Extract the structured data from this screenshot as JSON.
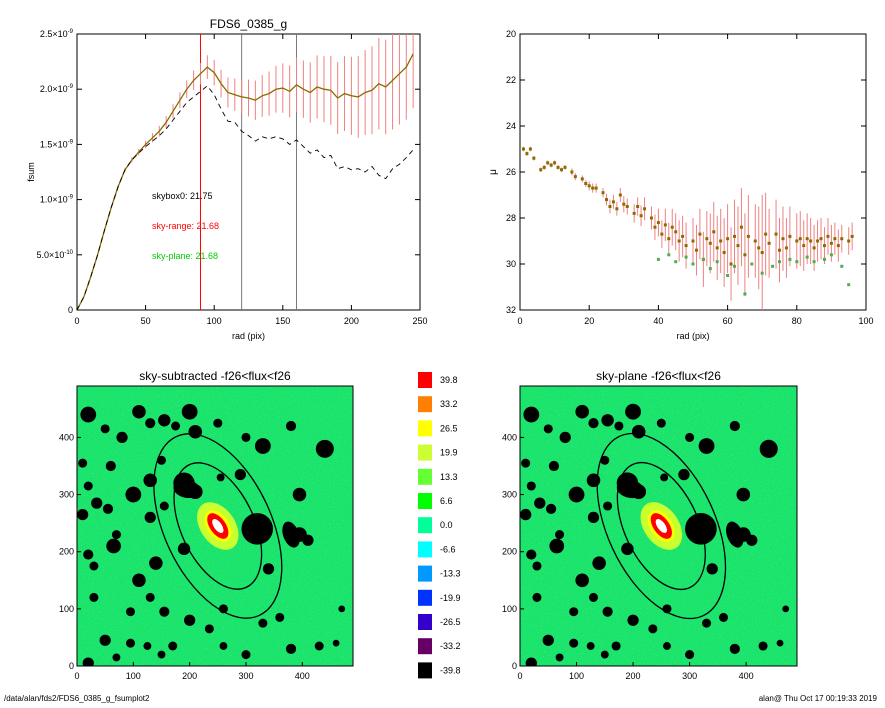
{
  "footer": {
    "path": "/data/alan/fds2/FDS6_0385_g_fsumplot2",
    "stamp": "alan@  Thu Oct 17 00:19:33 2019"
  },
  "chart_data": [
    {
      "id": "fsum",
      "type": "line",
      "title": "FDS6_0385_g",
      "xlabel": "rad (pix)",
      "ylabel": "fsum",
      "xlim": [
        0,
        250
      ],
      "ylim": [
        0,
        2.5e-09
      ],
      "x_ticks": [
        0,
        50,
        100,
        150,
        200,
        250
      ],
      "x_tick_labels": [
        "0",
        "50",
        "100",
        "150",
        "200",
        "250"
      ],
      "y_ticks": [
        0,
        5e-10,
        1e-09,
        1.5e-09,
        2e-09,
        2.5e-09
      ],
      "y_tick_labels": [
        {
          "mant": "0",
          "exp": ""
        },
        {
          "mant": "5.0×10",
          "exp": "-10"
        },
        {
          "mant": "1.0×10",
          "exp": "-9"
        },
        {
          "mant": "1.5×10",
          "exp": "-9"
        },
        {
          "mant": "2.0×10",
          "exp": "-9"
        },
        {
          "mant": "2.5×10",
          "exp": "-9"
        }
      ],
      "vlines": [
        {
          "x": 90,
          "color": "#ff0000"
        },
        {
          "x": 120,
          "color": "#777777"
        },
        {
          "x": 160,
          "color": "#777777"
        }
      ],
      "annotations": [
        {
          "text": "skybox0: 21.75",
          "color": "#000000"
        },
        {
          "text": "sky-range: 21.68",
          "color": "#ff0000"
        },
        {
          "text": "sky-plane: 21.68",
          "color": "#00cc00"
        }
      ],
      "series": [
        {
          "style": "solid",
          "color": "#8b6b00",
          "x": [
            0,
            5,
            10,
            15,
            20,
            25,
            30,
            35,
            40,
            45,
            50,
            55,
            60,
            65,
            70,
            75,
            80,
            85,
            90,
            95,
            100,
            105,
            110,
            115,
            120,
            125,
            130,
            135,
            140,
            145,
            150,
            155,
            160,
            165,
            170,
            175,
            180,
            185,
            190,
            195,
            200,
            205,
            210,
            215,
            220,
            225,
            230,
            235,
            240,
            245
          ],
          "y": [
            0,
            1.2e-10,
            3e-10,
            5e-10,
            7.2e-10,
            9.3e-10,
            1.12e-09,
            1.27e-09,
            1.36e-09,
            1.43e-09,
            1.5e-09,
            1.56e-09,
            1.62e-09,
            1.7e-09,
            1.8e-09,
            1.9e-09,
            2e-09,
            2.08e-09,
            2.14e-09,
            2.2e-09,
            2.15e-09,
            2.05e-09,
            1.97e-09,
            1.95e-09,
            1.93e-09,
            1.92e-09,
            1.9e-09,
            1.94e-09,
            1.96e-09,
            2e-09,
            2.01e-09,
            1.98e-09,
            2.04e-09,
            2e-09,
            1.97e-09,
            2.02e-09,
            2e-09,
            1.99e-09,
            1.92e-09,
            1.96e-09,
            1.94e-09,
            1.93e-09,
            1.97e-09,
            1.99e-09,
            2.05e-09,
            2.02e-09,
            2.08e-09,
            2.14e-09,
            2.2e-09,
            2.32e-09
          ],
          "err": [
            0,
            1e-12,
            2e-12,
            4e-12,
            6e-12,
            9e-12,
            1.3e-11,
            1.8e-11,
            2.3e-11,
            2.9e-11,
            3.5e-11,
            4.2e-11,
            4.9e-11,
            5.6e-11,
            6.4e-11,
            7.2e-11,
            8e-11,
            8.9e-11,
            9.8e-11,
            1.07e-10,
            1.16e-10,
            1.26e-10,
            1.36e-10,
            1.46e-10,
            1.56e-10,
            1.67e-10,
            1.78e-10,
            1.89e-10,
            2e-10,
            2.12e-10,
            2.24e-10,
            2.36e-10,
            2.48e-10,
            2.6e-10,
            2.73e-10,
            2.86e-10,
            2.99e-10,
            3.13e-10,
            3.26e-10,
            3.4e-10,
            3.54e-10,
            3.69e-10,
            3.84e-10,
            3.98e-10,
            4.14e-10,
            4.29e-10,
            4.45e-10,
            4.6e-10,
            4.76e-10,
            4.93e-10
          ],
          "errcolor": "#f08080"
        },
        {
          "style": "dashed",
          "color": "#000000",
          "x": [
            0,
            5,
            10,
            15,
            20,
            25,
            30,
            35,
            40,
            45,
            50,
            55,
            60,
            65,
            70,
            75,
            80,
            85,
            90,
            95,
            100,
            105,
            110,
            115,
            120,
            125,
            130,
            135,
            140,
            145,
            150,
            155,
            160,
            165,
            170,
            175,
            180,
            185,
            190,
            195,
            200,
            205,
            210,
            215,
            220,
            225,
            230,
            235,
            240,
            245
          ],
          "y": [
            0,
            1.2e-10,
            3e-10,
            5e-10,
            7.2e-10,
            9.3e-10,
            1.12e-09,
            1.27e-09,
            1.36e-09,
            1.42e-09,
            1.48e-09,
            1.53e-09,
            1.58e-09,
            1.64e-09,
            1.72e-09,
            1.8e-09,
            1.88e-09,
            1.93e-09,
            1.98e-09,
            2.03e-09,
            1.95e-09,
            1.82e-09,
            1.71e-09,
            1.7e-09,
            1.62e-09,
            1.58e-09,
            1.53e-09,
            1.57e-09,
            1.55e-09,
            1.57e-09,
            1.55e-09,
            1.5e-09,
            1.54e-09,
            1.48e-09,
            1.42e-09,
            1.45e-09,
            1.38e-09,
            1.4e-09,
            1.28e-09,
            1.3e-09,
            1.27e-09,
            1.28e-09,
            1.25e-09,
            1.3e-09,
            1.22e-09,
            1.19e-09,
            1.28e-09,
            1.32e-09,
            1.38e-09,
            1.45e-09
          ]
        }
      ]
    },
    {
      "id": "mu",
      "type": "scatter",
      "title": "",
      "xlabel": "rad (pix)",
      "ylabel": "μ",
      "xlim": [
        0,
        100
      ],
      "ylim": [
        20,
        32
      ],
      "y_inverted": true,
      "x_ticks": [
        0,
        20,
        40,
        60,
        80,
        100
      ],
      "y_ticks": [
        20,
        22,
        24,
        26,
        28,
        30,
        32
      ],
      "series": [
        {
          "color": "#8b6b00",
          "x": [
            1,
            2,
            3,
            4,
            6,
            7,
            8,
            9,
            10,
            11,
            12,
            13,
            15,
            16,
            18,
            19,
            20,
            21,
            22,
            24,
            25,
            26,
            27,
            28,
            29,
            30,
            31,
            33,
            34,
            35,
            36,
            38,
            39,
            40,
            41,
            42,
            43,
            44,
            45,
            46,
            47,
            48,
            50,
            51,
            52,
            53,
            54,
            55,
            56,
            57,
            58,
            59,
            60,
            61,
            62,
            63,
            64,
            65,
            66,
            68,
            69,
            70,
            71,
            72,
            74,
            75,
            76,
            77,
            78,
            80,
            81,
            82,
            83,
            84,
            85,
            86,
            87,
            88,
            89,
            90,
            91,
            92,
            93,
            95,
            96
          ],
          "y": [
            25.0,
            25.2,
            25.0,
            25.4,
            25.9,
            25.8,
            25.6,
            25.7,
            25.6,
            25.8,
            25.9,
            25.8,
            26.0,
            26.2,
            26.3,
            26.5,
            26.6,
            26.7,
            26.7,
            26.9,
            27.2,
            27.5,
            27.3,
            27.6,
            27.0,
            27.4,
            27.5,
            27.8,
            27.5,
            27.9,
            27.6,
            28.0,
            28.4,
            28.2,
            28.7,
            28.3,
            28.9,
            28.4,
            28.6,
            29.0,
            28.8,
            29.2,
            29.0,
            29.4,
            28.7,
            29.8,
            28.9,
            29.1,
            28.6,
            29.3,
            29.0,
            29.5,
            28.9,
            30.0,
            28.8,
            29.2,
            28.4,
            29.6,
            28.8,
            29.0,
            29.3,
            29.5,
            28.7,
            29.1,
            28.7,
            29.4,
            28.9,
            29.3,
            28.8,
            29.0,
            28.9,
            29.2,
            28.9,
            29.0,
            29.3,
            29.0,
            28.9,
            29.2,
            28.8,
            29.1,
            28.9,
            29.2,
            28.9,
            29.0,
            28.8
          ],
          "err": [
            0.1,
            0.1,
            0.1,
            0.1,
            0.1,
            0.1,
            0.1,
            0.1,
            0.1,
            0.1,
            0.1,
            0.1,
            0.15,
            0.15,
            0.15,
            0.15,
            0.2,
            0.2,
            0.2,
            0.2,
            0.25,
            0.3,
            0.3,
            0.3,
            0.3,
            0.35,
            0.35,
            0.4,
            0.4,
            0.45,
            0.5,
            0.5,
            0.55,
            0.6,
            0.6,
            0.7,
            0.7,
            0.8,
            0.8,
            0.9,
            0.9,
            1.0,
            1.0,
            1.1,
            1.1,
            1.2,
            1.2,
            1.3,
            1.3,
            1.4,
            1.4,
            1.5,
            1.5,
            1.6,
            1.6,
            1.7,
            1.7,
            1.8,
            1.8,
            1.6,
            1.8,
            2.5,
            1.8,
            1.5,
            1.5,
            1.4,
            1.4,
            1.3,
            1.3,
            1.2,
            1.2,
            1.1,
            1.1,
            1.0,
            1.0,
            0.9,
            0.9,
            0.8,
            0.8,
            0.8,
            0.7,
            0.7,
            0.6,
            0.6,
            0.6
          ],
          "errcolor": "#f08080"
        },
        {
          "color": "#4caf50",
          "x": [
            40,
            43,
            45,
            48,
            50,
            53,
            55,
            57,
            60,
            62,
            65,
            67,
            70,
            73,
            75,
            78,
            80,
            83,
            85,
            88,
            90,
            93,
            95
          ],
          "y": [
            29.8,
            29.6,
            29.9,
            29.7,
            30.0,
            29.8,
            30.2,
            29.9,
            30.5,
            30.1,
            31.3,
            30.0,
            30.4,
            30.1,
            29.9,
            29.8,
            29.9,
            29.7,
            29.9,
            29.8,
            29.6,
            30.1,
            30.9
          ]
        }
      ]
    },
    {
      "id": "img-sky-subtracted",
      "type": "heatmap",
      "title": "sky-subtracted -f26<flux<f26",
      "xlim": [
        0,
        490
      ],
      "ylim": [
        0,
        490
      ],
      "x_ticks": [
        0,
        100,
        200,
        300,
        400
      ],
      "y_ticks": [
        0,
        100,
        200,
        300,
        400
      ]
    },
    {
      "id": "img-sky-plane",
      "type": "heatmap",
      "title": "sky-plane -f26<flux<f26",
      "xlim": [
        0,
        490
      ],
      "ylim": [
        0,
        490
      ],
      "x_ticks": [
        0,
        100,
        200,
        300,
        400
      ],
      "y_ticks": [
        0,
        100,
        200,
        300,
        400
      ]
    },
    {
      "id": "colorbar",
      "type": "table",
      "levels": [
        "39.8",
        "33.2",
        "26.5",
        "19.9",
        "13.3",
        "6.6",
        "0.0",
        "-6.6",
        "-13.3",
        "-19.9",
        "-26.5",
        "-33.2",
        "-39.8"
      ],
      "colors": [
        "#ff0000",
        "#ff7f00",
        "#ffff00",
        "#ccff33",
        "#66ff33",
        "#00ff00",
        "#00ff99",
        "#00ffff",
        "#0099ff",
        "#0033ff",
        "#3300cc",
        "#660066",
        "#000000"
      ]
    }
  ],
  "masks": [
    {
      "x": 20,
      "y": 440,
      "r": 14
    },
    {
      "x": 50,
      "y": 415,
      "r": 8
    },
    {
      "x": 80,
      "y": 400,
      "r": 10
    },
    {
      "x": 110,
      "y": 445,
      "r": 12
    },
    {
      "x": 130,
      "y": 425,
      "r": 9
    },
    {
      "x": 155,
      "y": 430,
      "r": 11
    },
    {
      "x": 175,
      "y": 420,
      "r": 8
    },
    {
      "x": 200,
      "y": 445,
      "r": 14
    },
    {
      "x": 210,
      "y": 410,
      "r": 12
    },
    {
      "x": 250,
      "y": 425,
      "r": 8
    },
    {
      "x": 300,
      "y": 400,
      "r": 8
    },
    {
      "x": 330,
      "y": 385,
      "r": 14
    },
    {
      "x": 380,
      "y": 420,
      "r": 9
    },
    {
      "x": 440,
      "y": 380,
      "r": 16
    },
    {
      "x": 10,
      "y": 355,
      "r": 8
    },
    {
      "x": 60,
      "y": 350,
      "r": 9
    },
    {
      "x": 150,
      "y": 360,
      "r": 8
    },
    {
      "x": 130,
      "y": 325,
      "r": 12
    },
    {
      "x": 190,
      "y": 320,
      "r": 19
    },
    {
      "x": 210,
      "y": 305,
      "r": 13
    },
    {
      "x": 20,
      "y": 315,
      "r": 8
    },
    {
      "x": 35,
      "y": 285,
      "r": 10
    },
    {
      "x": 55,
      "y": 275,
      "r": 9
    },
    {
      "x": 10,
      "y": 265,
      "r": 10
    },
    {
      "x": 100,
      "y": 300,
      "r": 14
    },
    {
      "x": 155,
      "y": 280,
      "r": 8
    },
    {
      "x": 255,
      "y": 330,
      "r": 7
    },
    {
      "x": 290,
      "y": 335,
      "r": 10
    },
    {
      "x": 395,
      "y": 300,
      "r": 12
    },
    {
      "x": 320,
      "y": 240,
      "r": 28
    },
    {
      "x": 395,
      "y": 230,
      "r": 13
    },
    {
      "x": 410,
      "y": 220,
      "r": 10
    },
    {
      "x": 340,
      "y": 170,
      "r": 10
    },
    {
      "x": 130,
      "y": 260,
      "r": 10
    },
    {
      "x": 70,
      "y": 230,
      "r": 8
    },
    {
      "x": 65,
      "y": 210,
      "r": 13
    },
    {
      "x": 20,
      "y": 195,
      "r": 9
    },
    {
      "x": 30,
      "y": 175,
      "r": 8
    },
    {
      "x": 140,
      "y": 180,
      "r": 12
    },
    {
      "x": 190,
      "y": 205,
      "r": 11
    },
    {
      "x": 110,
      "y": 150,
      "r": 12
    },
    {
      "x": 130,
      "y": 120,
      "r": 8
    },
    {
      "x": 95,
      "y": 95,
      "r": 8
    },
    {
      "x": 155,
      "y": 95,
      "r": 9
    },
    {
      "x": 200,
      "y": 80,
      "r": 10
    },
    {
      "x": 235,
      "y": 65,
      "r": 8
    },
    {
      "x": 260,
      "y": 100,
      "r": 8
    },
    {
      "x": 330,
      "y": 75,
      "r": 8
    },
    {
      "x": 360,
      "y": 85,
      "r": 8
    },
    {
      "x": 380,
      "y": 30,
      "r": 9
    },
    {
      "x": 430,
      "y": 35,
      "r": 8
    },
    {
      "x": 470,
      "y": 100,
      "r": 6
    },
    {
      "x": 460,
      "y": 40,
      "r": 6
    },
    {
      "x": 30,
      "y": 120,
      "r": 8
    },
    {
      "x": 50,
      "y": 45,
      "r": 10
    },
    {
      "x": 95,
      "y": 40,
      "r": 8
    },
    {
      "x": 125,
      "y": 35,
      "r": 7
    },
    {
      "x": 170,
      "y": 35,
      "r": 8
    },
    {
      "x": 150,
      "y": 20,
      "r": 7
    },
    {
      "x": 20,
      "y": 5,
      "r": 10
    },
    {
      "x": 70,
      "y": 15,
      "r": 7
    },
    {
      "x": 300,
      "y": 20,
      "r": 8
    },
    {
      "x": 260,
      "y": 35,
      "r": 7
    }
  ],
  "blobs": [
    {
      "x": 380,
      "y": 230,
      "rx": 14,
      "ry": 24,
      "rot": -20
    },
    {
      "x": 195,
      "y": 310,
      "rx": 24,
      "ry": 16,
      "rot": 10
    }
  ],
  "galaxy": {
    "x": 250,
    "y": 245,
    "rot": -35,
    "ellipses": [
      {
        "a": 65,
        "b": 120
      },
      {
        "a": 95,
        "b": 175
      }
    ],
    "core": {
      "a": 14,
      "b": 26
    }
  }
}
